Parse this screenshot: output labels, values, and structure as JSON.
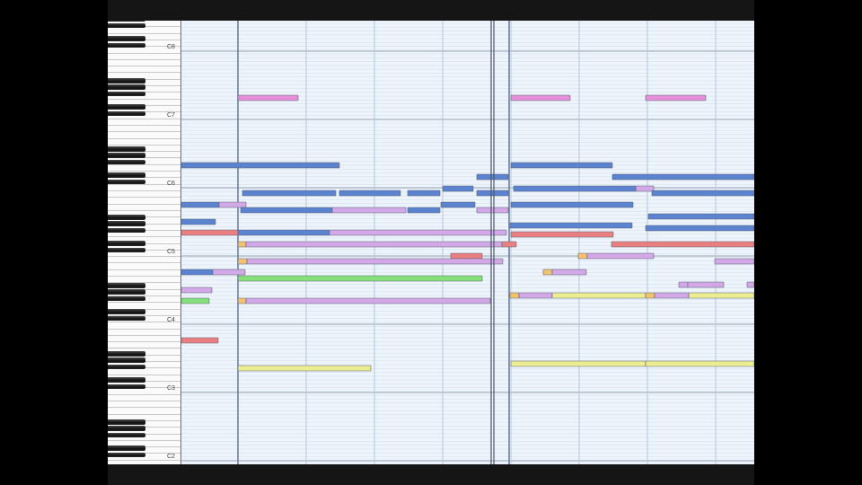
{
  "app": {
    "view": "piano-roll",
    "keyboard": {
      "octave_labels": [
        "C8",
        "C7",
        "C6",
        "C5",
        "C4",
        "C3",
        "C2"
      ]
    },
    "colors": {
      "grid_bg": "#eef4fb",
      "row_line": "#d3e0ee",
      "octave_line": "#98a4b0",
      "beat_line": "#b7c6d8",
      "bar_line": "#5f6f92",
      "playhead": "#4b5566",
      "notes": {
        "blue": "#5b83cf",
        "pink": "#e58fd8",
        "lavender": "#d3a8e6",
        "red": "#ea7f82",
        "green": "#86e07a",
        "yellow": "#ecec90",
        "orange": "#f2c271"
      }
    }
  }
}
